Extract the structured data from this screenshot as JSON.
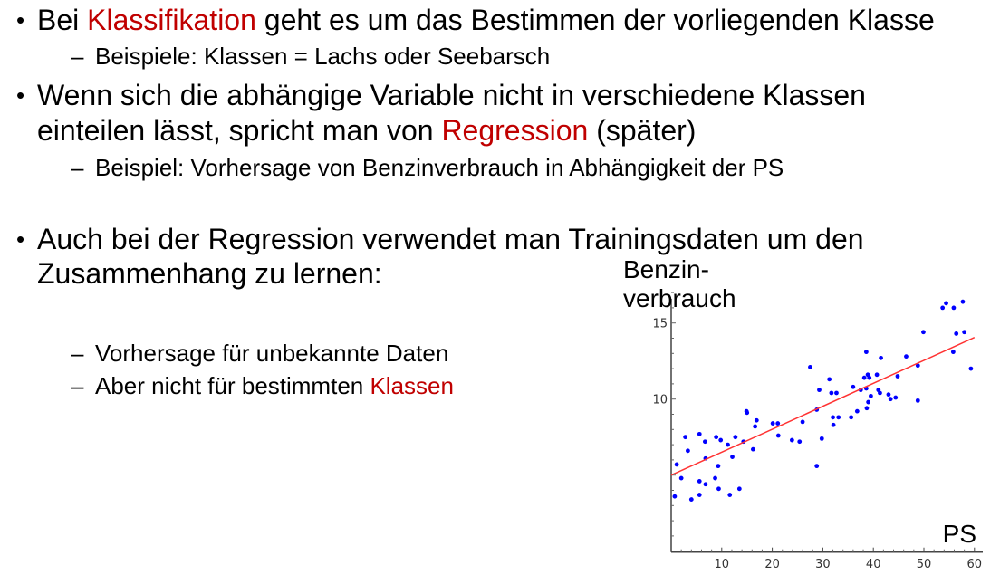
{
  "bullets": {
    "b1": {
      "pre": "Bei ",
      "highlight": "Klassifikation",
      "post": " geht es um das Bestimmen der vorliegenden Klasse"
    },
    "b1_sub": "Beispiele: Klassen = Lachs oder Seebarsch",
    "b2_line1": "Wenn sich die abhängige Variable nicht in verschiedene Klassen",
    "b2_line2": {
      "pre": "einteilen lässt, spricht man von ",
      "highlight": "Regression",
      "post": " (später)"
    },
    "b2_sub": "Beispiel: Vorhersage von Benzinverbrauch in Abhängigkeit der PS",
    "b3_line1": "Auch bei der Regression verwendet man Trainingsdaten um den",
    "b3_line2": "Zusammenhang zu lernen:",
    "b3_sub1": "Vorhersage für unbekannte Daten",
    "b3_sub2": {
      "pre": "Aber nicht für bestimmten ",
      "highlight": "Klassen"
    },
    "bullet_symbol": "•",
    "dash_symbol": "–"
  },
  "colors": {
    "highlight": "#c00000",
    "points": "#0000ff",
    "fit_line": "#ff3333"
  },
  "chart_data": {
    "type": "scatter",
    "ylabel_line1": "Benzin-",
    "ylabel_line2": "verbrauch",
    "xlabel": "PS",
    "xlim": [
      0,
      60
    ],
    "ylim": [
      0,
      17
    ],
    "x_ticks": [
      "10",
      "20",
      "30",
      "40",
      "50",
      "60"
    ],
    "y_ticks": [
      "10",
      "15"
    ],
    "grid": false,
    "points": [
      [
        0.7,
        3.6
      ],
      [
        1.1,
        5.7
      ],
      [
        2.0,
        4.8
      ],
      [
        2.8,
        7.5
      ],
      [
        3.3,
        6.6
      ],
      [
        4.0,
        3.4
      ],
      [
        5.6,
        3.7
      ],
      [
        5.6,
        4.6
      ],
      [
        5.6,
        7.7
      ],
      [
        6.7,
        7.2
      ],
      [
        6.8,
        6.1
      ],
      [
        6.8,
        4.4
      ],
      [
        8.7,
        4.8
      ],
      [
        8.9,
        7.5
      ],
      [
        9.3,
        5.6
      ],
      [
        9.4,
        4.1
      ],
      [
        9.8,
        7.3
      ],
      [
        11.2,
        7.0
      ],
      [
        11.6,
        3.7
      ],
      [
        12.1,
        6.2
      ],
      [
        12.7,
        7.5
      ],
      [
        13.5,
        4.1
      ],
      [
        14.3,
        7.2
      ],
      [
        14.9,
        9.2
      ],
      [
        15.0,
        9.1
      ],
      [
        16.2,
        6.7
      ],
      [
        16.6,
        8.2
      ],
      [
        16.9,
        8.6
      ],
      [
        20.1,
        8.4
      ],
      [
        21.1,
        8.4
      ],
      [
        21.2,
        7.6
      ],
      [
        23.9,
        7.3
      ],
      [
        25.4,
        7.2
      ],
      [
        26.0,
        8.5
      ],
      [
        27.5,
        12.1
      ],
      [
        28.8,
        5.6
      ],
      [
        28.8,
        9.3
      ],
      [
        29.3,
        10.6
      ],
      [
        29.8,
        7.4
      ],
      [
        31.3,
        11.3
      ],
      [
        31.7,
        10.4
      ],
      [
        32.0,
        8.8
      ],
      [
        32.1,
        8.3
      ],
      [
        32.7,
        10.4
      ],
      [
        33.1,
        8.8
      ],
      [
        35.6,
        8.8
      ],
      [
        36.0,
        10.8
      ],
      [
        36.8,
        9.2
      ],
      [
        37.5,
        10.6
      ],
      [
        38.2,
        11.4
      ],
      [
        38.6,
        10.7
      ],
      [
        38.6,
        13.1
      ],
      [
        38.7,
        9.4
      ],
      [
        38.9,
        11.6
      ],
      [
        39.0,
        9.8
      ],
      [
        39.2,
        11.4
      ],
      [
        39.5,
        10.2
      ],
      [
        40.7,
        11.6
      ],
      [
        41.0,
        10.6
      ],
      [
        41.3,
        10.4
      ],
      [
        41.5,
        12.7
      ],
      [
        43.0,
        10.3
      ],
      [
        43.4,
        10.0
      ],
      [
        44.4,
        10.1
      ],
      [
        44.8,
        11.5
      ],
      [
        46.5,
        12.8
      ],
      [
        48.8,
        12.2
      ],
      [
        48.8,
        9.9
      ],
      [
        49.9,
        14.4
      ],
      [
        53.7,
        16.0
      ],
      [
        54.4,
        16.3
      ],
      [
        55.8,
        13.1
      ],
      [
        55.9,
        16.0
      ],
      [
        56.4,
        14.3
      ],
      [
        57.7,
        16.4
      ],
      [
        58.0,
        14.4
      ],
      [
        59.3,
        12.0
      ]
    ],
    "fit_line": {
      "x": [
        0,
        60
      ],
      "y": [
        5.0,
        14.05
      ]
    }
  }
}
